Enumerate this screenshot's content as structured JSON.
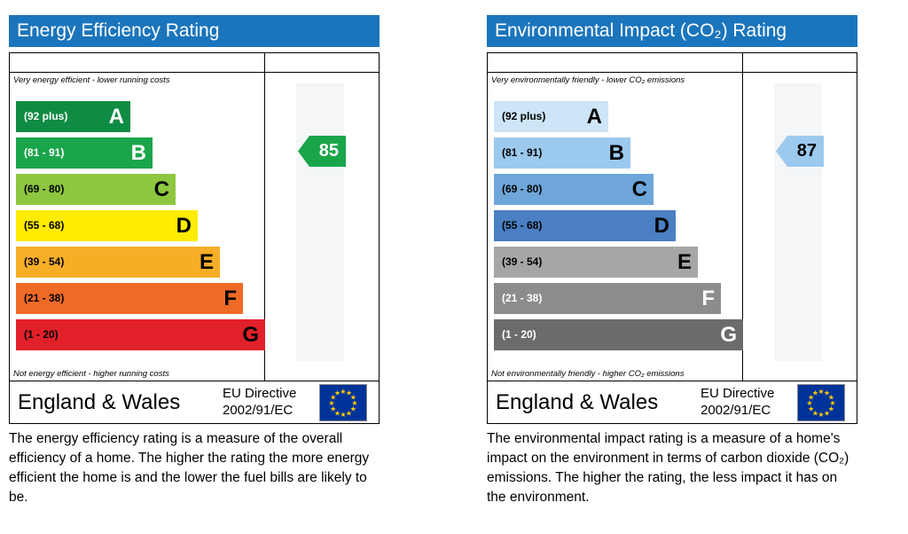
{
  "chart_data": [
    {
      "type": "bar",
      "title": "Energy Efficiency Rating",
      "top_caption": "Very energy efficient - lower running costs",
      "bottom_caption": "Not energy efficient - higher running costs",
      "bands": [
        {
          "range": "(92 plus)",
          "letter": "A",
          "color": "#0f8c43",
          "text_color": "#ffffff"
        },
        {
          "range": "(81 - 91)",
          "letter": "B",
          "color": "#1aa54a",
          "text_color": "#ffffff"
        },
        {
          "range": "(69 - 80)",
          "letter": "C",
          "color": "#8dc63f",
          "text_color": "#000000"
        },
        {
          "range": "(55 - 68)",
          "letter": "D",
          "color": "#ffec00",
          "text_color": "#000000"
        },
        {
          "range": "(39 - 54)",
          "letter": "E",
          "color": "#f7ae27",
          "text_color": "#000000"
        },
        {
          "range": "(21 - 38)",
          "letter": "F",
          "color": "#ef6a26",
          "text_color": "#000000"
        },
        {
          "range": "(1 - 20)",
          "letter": "G",
          "color": "#e2202a",
          "text_color": "#000000"
        }
      ],
      "rating": 85,
      "rating_band_index": 1,
      "rating_color": "#1aa54a",
      "rating_text_color": "#ffffff"
    },
    {
      "type": "bar",
      "title": "Environmental Impact (CO₂) Rating",
      "top_caption": "Very environmentally friendly - lower CO₂ emissions",
      "bottom_caption": "Not environmentally friendly - higher CO₂ emissions",
      "bands": [
        {
          "range": "(92 plus)",
          "letter": "A",
          "color": "#cde5f7",
          "text_color": "#000000"
        },
        {
          "range": "(81 - 91)",
          "letter": "B",
          "color": "#9cc9ee",
          "text_color": "#000000"
        },
        {
          "range": "(69 - 80)",
          "letter": "C",
          "color": "#6ea6d9",
          "text_color": "#000000"
        },
        {
          "range": "(55 - 68)",
          "letter": "D",
          "color": "#4a7fc3",
          "text_color": "#000000"
        },
        {
          "range": "(39 - 54)",
          "letter": "E",
          "color": "#a6a6a6",
          "text_color": "#000000"
        },
        {
          "range": "(21 - 38)",
          "letter": "F",
          "color": "#8c8c8c",
          "text_color": "#ffffff"
        },
        {
          "range": "(1 - 20)",
          "letter": "G",
          "color": "#6b6b6b",
          "text_color": "#ffffff"
        }
      ],
      "rating": 87,
      "rating_band_index": 1,
      "rating_color": "#9cc9ee",
      "rating_text_color": "#000000"
    }
  ],
  "footer": {
    "region": "England & Wales",
    "directive_line1": "EU Directive",
    "directive_line2": "2002/91/EC",
    "flag_icon": "eu-flag-icon"
  },
  "descriptions": [
    "The energy efficiency rating is a measure of the overall efficiency of a home. The higher the rating the more energy efficient the home is and the lower the fuel bills are likely to be.",
    "The environmental impact rating is a measure of a home's impact on the environment in terms of carbon dioxide (CO₂) emissions. The higher the rating, the less impact it has on the environment."
  ]
}
